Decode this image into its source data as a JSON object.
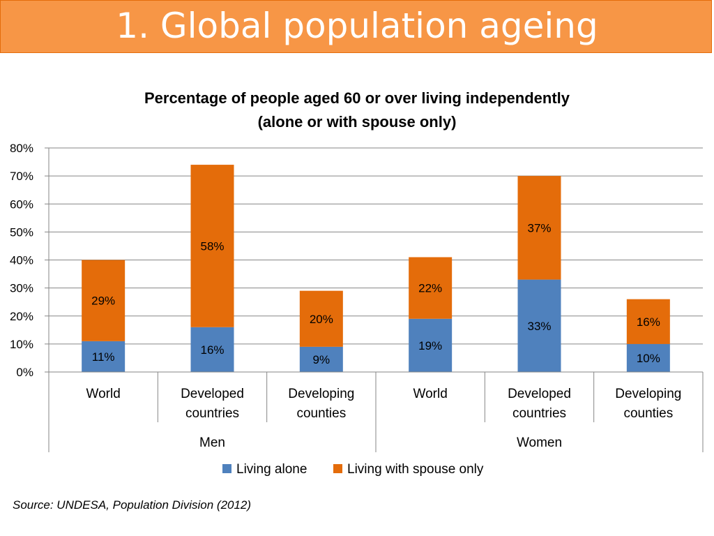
{
  "header": {
    "title": "1. Global population ageing"
  },
  "colors": {
    "banner": "#F79646",
    "alone": "#4F81BD",
    "spouse": "#E46C0A",
    "grid": "#868686"
  },
  "chart_data": {
    "type": "bar",
    "stacked": true,
    "title": "Percentage of people aged 60 or over living independently",
    "subtitle": "(alone or with spouse only)",
    "ylim": [
      0,
      80
    ],
    "yticks": [
      "0%",
      "10%",
      "20%",
      "30%",
      "40%",
      "50%",
      "60%",
      "70%",
      "80%"
    ],
    "grid": true,
    "legend_position": "bottom",
    "groups": [
      {
        "label": "Men",
        "categories": [
          [
            "World"
          ],
          [
            "Developed",
            "countries"
          ],
          [
            "Developing",
            "counties"
          ]
        ]
      },
      {
        "label": "Women",
        "categories": [
          [
            "World"
          ],
          [
            "Developed",
            "countries"
          ],
          [
            "Developing",
            "counties"
          ]
        ]
      }
    ],
    "series": [
      {
        "name": "Living alone",
        "color": "#4F81BD",
        "values": [
          11,
          16,
          9,
          19,
          33,
          10
        ],
        "labels": [
          "11%",
          "16%",
          "9%",
          "19%",
          "33%",
          "10%"
        ]
      },
      {
        "name": "Living with spouse only",
        "color": "#E46C0A",
        "values": [
          29,
          58,
          20,
          22,
          37,
          16
        ],
        "labels": [
          "29%",
          "58%",
          "20%",
          "22%",
          "37%",
          "16%"
        ]
      }
    ]
  },
  "source": "Source: UNDESA, Population Division (2012)"
}
